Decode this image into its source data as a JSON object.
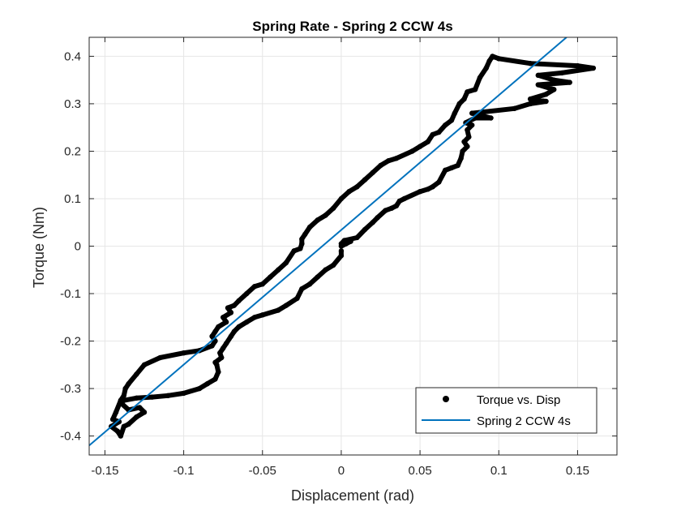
{
  "chart_data": {
    "type": "scatter",
    "title": "Spring Rate - Spring 2 CCW 4s",
    "xlabel": "Displacement (rad)",
    "ylabel": "Torque (Nm)",
    "xlim": [
      -0.16,
      0.175
    ],
    "ylim": [
      -0.44,
      0.44
    ],
    "xticks": [
      -0.15,
      -0.1,
      -0.05,
      0,
      0.05,
      0.1,
      0.15
    ],
    "xtick_labels": [
      "-0.15",
      "-0.1",
      "-0.05",
      "0",
      "0.05",
      "0.1",
      "0.15"
    ],
    "yticks": [
      -0.4,
      -0.3,
      -0.2,
      -0.1,
      0,
      0.1,
      0.2,
      0.3,
      0.4
    ],
    "ytick_labels": [
      "-0.4",
      "-0.3",
      "-0.2",
      "-0.1",
      "0",
      "0.1",
      "0.2",
      "0.3",
      "0.4"
    ],
    "grid": true,
    "legend_position": "bottom-right",
    "series": [
      {
        "name": "Torque vs. Disp",
        "kind": "markers",
        "color": "#000000",
        "points": [
          [
            0.0,
            0.0
          ],
          [
            0.003,
            0.005
          ],
          [
            0.006,
            0.01
          ],
          [
            0.0,
            0.005
          ],
          [
            0.002,
            0.012
          ],
          [
            0.01,
            0.018
          ],
          [
            0.015,
            0.035
          ],
          [
            0.02,
            0.05
          ],
          [
            0.023,
            0.06
          ],
          [
            0.028,
            0.075
          ],
          [
            0.032,
            0.08
          ],
          [
            0.035,
            0.085
          ],
          [
            0.037,
            0.095
          ],
          [
            0.04,
            0.1
          ],
          [
            0.05,
            0.115
          ],
          [
            0.055,
            0.12
          ],
          [
            0.058,
            0.125
          ],
          [
            0.062,
            0.135
          ],
          [
            0.066,
            0.16
          ],
          [
            0.07,
            0.165
          ],
          [
            0.074,
            0.17
          ],
          [
            0.076,
            0.185
          ],
          [
            0.077,
            0.2
          ],
          [
            0.08,
            0.21
          ],
          [
            0.078,
            0.22
          ],
          [
            0.081,
            0.23
          ],
          [
            0.08,
            0.245
          ],
          [
            0.083,
            0.255
          ],
          [
            0.079,
            0.26
          ],
          [
            0.085,
            0.27
          ],
          [
            0.095,
            0.27
          ],
          [
            0.083,
            0.28
          ],
          [
            0.11,
            0.29
          ],
          [
            0.12,
            0.3
          ],
          [
            0.13,
            0.305
          ],
          [
            0.12,
            0.31
          ],
          [
            0.13,
            0.32
          ],
          [
            0.135,
            0.33
          ],
          [
            0.125,
            0.34
          ],
          [
            0.145,
            0.345
          ],
          [
            0.135,
            0.35
          ],
          [
            0.125,
            0.36
          ],
          [
            0.14,
            0.365
          ],
          [
            0.16,
            0.375
          ],
          [
            0.15,
            0.38
          ],
          [
            0.12,
            0.385
          ],
          [
            0.1,
            0.395
          ],
          [
            0.096,
            0.4
          ],
          [
            0.094,
            0.39
          ],
          [
            0.092,
            0.375
          ],
          [
            0.088,
            0.355
          ],
          [
            0.085,
            0.33
          ],
          [
            0.08,
            0.325
          ],
          [
            0.078,
            0.31
          ],
          [
            0.075,
            0.3
          ],
          [
            0.072,
            0.28
          ],
          [
            0.07,
            0.265
          ],
          [
            0.066,
            0.255
          ],
          [
            0.062,
            0.24
          ],
          [
            0.058,
            0.235
          ],
          [
            0.055,
            0.22
          ],
          [
            0.05,
            0.21
          ],
          [
            0.045,
            0.2
          ],
          [
            0.035,
            0.185
          ],
          [
            0.03,
            0.18
          ],
          [
            0.025,
            0.17
          ],
          [
            0.02,
            0.155
          ],
          [
            0.015,
            0.14
          ],
          [
            0.01,
            0.125
          ],
          [
            0.005,
            0.115
          ],
          [
            0.0,
            0.1
          ],
          [
            -0.005,
            0.08
          ],
          [
            -0.01,
            0.065
          ],
          [
            -0.015,
            0.055
          ],
          [
            -0.02,
            0.04
          ],
          [
            -0.023,
            0.025
          ],
          [
            -0.025,
            0.015
          ],
          [
            -0.025,
            0.005
          ],
          [
            -0.026,
            -0.005
          ],
          [
            -0.03,
            -0.01
          ],
          [
            -0.035,
            -0.035
          ],
          [
            -0.04,
            -0.05
          ],
          [
            -0.045,
            -0.065
          ],
          [
            -0.05,
            -0.08
          ],
          [
            -0.055,
            -0.085
          ],
          [
            -0.06,
            -0.1
          ],
          [
            -0.065,
            -0.115
          ],
          [
            -0.068,
            -0.125
          ],
          [
            -0.072,
            -0.13
          ],
          [
            -0.07,
            -0.14
          ],
          [
            -0.075,
            -0.15
          ],
          [
            -0.073,
            -0.16
          ],
          [
            -0.078,
            -0.17
          ],
          [
            -0.08,
            -0.18
          ],
          [
            -0.082,
            -0.19
          ],
          [
            -0.08,
            -0.2
          ],
          [
            -0.082,
            -0.21
          ],
          [
            -0.09,
            -0.22
          ],
          [
            -0.1,
            -0.225
          ],
          [
            -0.115,
            -0.235
          ],
          [
            -0.125,
            -0.25
          ],
          [
            -0.13,
            -0.27
          ],
          [
            -0.135,
            -0.29
          ],
          [
            -0.137,
            -0.3
          ],
          [
            -0.138,
            -0.315
          ],
          [
            -0.14,
            -0.325
          ],
          [
            -0.143,
            -0.35
          ],
          [
            -0.145,
            -0.365
          ],
          [
            -0.141,
            -0.37
          ],
          [
            -0.146,
            -0.38
          ],
          [
            -0.142,
            -0.39
          ],
          [
            -0.14,
            -0.4
          ],
          [
            -0.138,
            -0.38
          ],
          [
            -0.135,
            -0.375
          ],
          [
            -0.13,
            -0.36
          ],
          [
            -0.125,
            -0.35
          ],
          [
            -0.128,
            -0.34
          ],
          [
            -0.135,
            -0.345
          ],
          [
            -0.14,
            -0.33
          ],
          [
            -0.138,
            -0.325
          ],
          [
            -0.13,
            -0.32
          ],
          [
            -0.12,
            -0.318
          ],
          [
            -0.11,
            -0.315
          ],
          [
            -0.1,
            -0.31
          ],
          [
            -0.09,
            -0.3
          ],
          [
            -0.085,
            -0.29
          ],
          [
            -0.08,
            -0.28
          ],
          [
            -0.078,
            -0.265
          ],
          [
            -0.079,
            -0.25
          ],
          [
            -0.08,
            -0.245
          ],
          [
            -0.076,
            -0.235
          ],
          [
            -0.077,
            -0.225
          ],
          [
            -0.075,
            -0.215
          ],
          [
            -0.073,
            -0.205
          ],
          [
            -0.07,
            -0.19
          ],
          [
            -0.068,
            -0.18
          ],
          [
            -0.065,
            -0.17
          ],
          [
            -0.06,
            -0.16
          ],
          [
            -0.055,
            -0.15
          ],
          [
            -0.05,
            -0.145
          ],
          [
            -0.04,
            -0.135
          ],
          [
            -0.035,
            -0.125
          ],
          [
            -0.028,
            -0.11
          ],
          [
            -0.025,
            -0.09
          ],
          [
            -0.02,
            -0.08
          ],
          [
            -0.015,
            -0.065
          ],
          [
            -0.01,
            -0.05
          ],
          [
            -0.005,
            -0.04
          ],
          [
            0.0,
            -0.02
          ],
          [
            0.0,
            -0.01
          ]
        ]
      },
      {
        "name": "Spring 2 CCW 4s",
        "kind": "line",
        "color": "#0072BD",
        "line": [
          [
            -0.16,
            -0.42
          ],
          [
            0.143,
            0.44
          ]
        ]
      }
    ]
  }
}
